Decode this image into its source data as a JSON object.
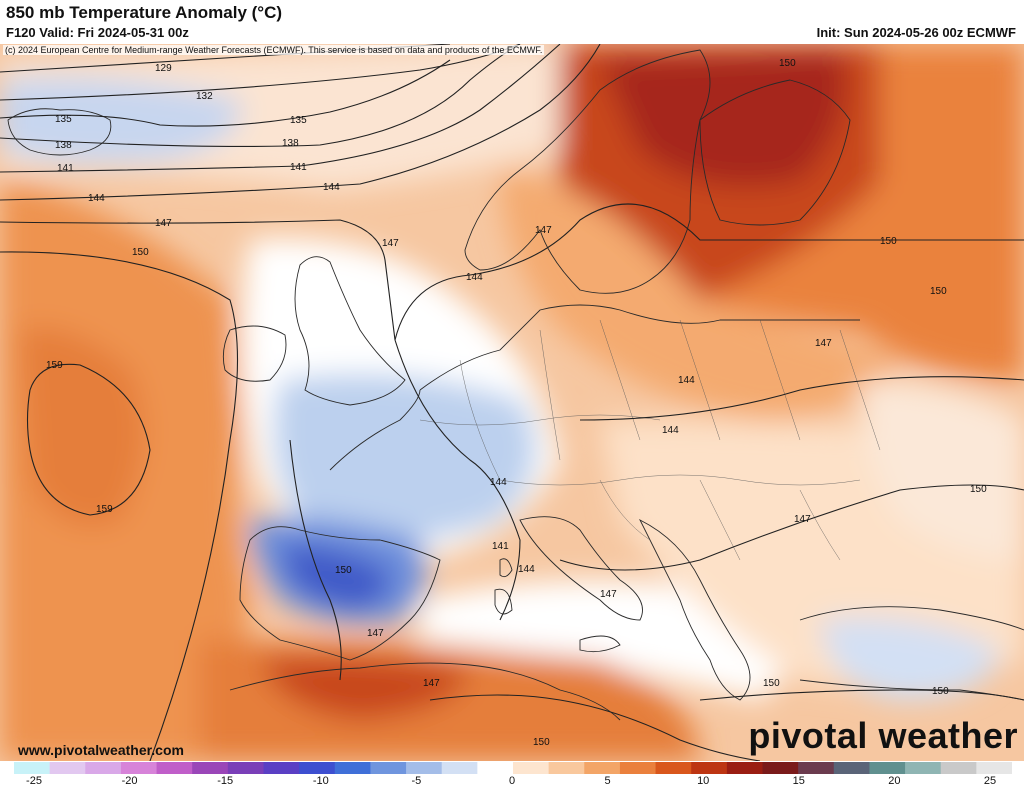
{
  "header": {
    "title": "850 mb Temperature Anomaly (°C)",
    "valid": "F120 Valid: Fri 2024-05-31 00z",
    "init": "Init: Sun 2024-05-26 00z ECMWF"
  },
  "copyright": "(c) 2024 European Centre for Medium-range Weather Forecasts (ECMWF). This service is based on data and products of the ECMWF.",
  "footer": {
    "url": "www.pivotalweather.com",
    "brand": "pivotal weather"
  },
  "colorbar": {
    "min": -25,
    "max": 25,
    "tick_labels": [
      "-25",
      "-20",
      "-15",
      "-10",
      "-5",
      "0",
      "5",
      "10",
      "15",
      "20",
      "25"
    ],
    "colors": [
      "#c8f2f8",
      "#e2c8f0",
      "#d9a8e8",
      "#d783d9",
      "#c05ec9",
      "#9a46b8",
      "#7a3fb8",
      "#5a3fc4",
      "#3d4fd0",
      "#3f6fd8",
      "#6f95de",
      "#a4bde8",
      "#d3e0f4",
      "#ffffff",
      "#fde5cf",
      "#f9c89d",
      "#f3a567",
      "#ea803d",
      "#d9571c",
      "#bd3512",
      "#9a1d12",
      "#7a1a1a",
      "#6b3b4e",
      "#5a6478",
      "#60908f",
      "#8fb5b3",
      "#c9c9c9",
      "#e6e6e6"
    ]
  },
  "contour_labels": [
    "129",
    "132",
    "135",
    "138",
    "141",
    "144",
    "147",
    "150",
    "159"
  ]
}
